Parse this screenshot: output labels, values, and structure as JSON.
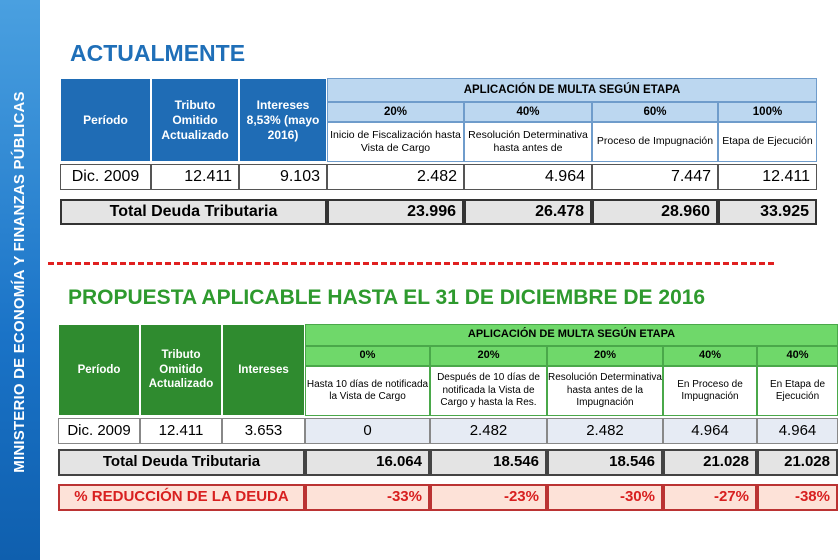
{
  "sidebar": {
    "text": "MINISTERIO DE ECONOMÍA Y FINANZAS PÚBLICAS"
  },
  "section1": {
    "heading": "ACTUALMENTE",
    "header": {
      "periodo": "Período",
      "tributo": "Tributo Omitido Actualizado",
      "intereses": "Intereses 8,53% (mayo 2016)",
      "aplicacion": "APLICACIÓN DE MULTA SEGÚN ETAPA"
    },
    "stages": [
      {
        "pct": "20%",
        "desc": "Inicio de Fiscalización hasta Vista de Cargo"
      },
      {
        "pct": "40%",
        "desc": "Resolución Determinativa hasta antes de"
      },
      {
        "pct": "60%",
        "desc": "Proceso de Impugnación"
      },
      {
        "pct": "100%",
        "desc": "Etapa de Ejecución"
      }
    ],
    "row": {
      "periodo": "Dic. 2009",
      "tributo": "12.411",
      "intereses": "9.103",
      "values": [
        "2.482",
        "4.964",
        "7.447",
        "12.411"
      ]
    },
    "total": {
      "label": "Total Deuda Tributaria",
      "values": [
        "23.996",
        "26.478",
        "28.960",
        "33.925"
      ]
    }
  },
  "section2": {
    "heading": "PROPUESTA APLICABLE HASTA EL 31 DE DICIEMBRE DE 2016",
    "header": {
      "periodo": "Período",
      "tributo": "Tributo Omitido Actualizado",
      "intereses": "Intereses",
      "aplicacion": "APLICACIÓN DE MULTA SEGÚN ETAPA"
    },
    "stages": [
      {
        "pct": "0%",
        "desc": "Hasta 10 días de notificada la Vista de Cargo"
      },
      {
        "pct": "20%",
        "desc": "Después de 10 días de notificada la Vista de Cargo y hasta la Res."
      },
      {
        "pct": "20%",
        "desc": "Resolución Determinativa hasta antes de la Impugnación"
      },
      {
        "pct": "40%",
        "desc": "En Proceso de Impugnación"
      },
      {
        "pct": "40%",
        "desc": "En Etapa de Ejecución"
      }
    ],
    "row": {
      "periodo": "Dic. 2009",
      "tributo": "12.411",
      "intereses": "3.653",
      "values": [
        "0",
        "2.482",
        "2.482",
        "4.964",
        "4.964"
      ]
    },
    "total": {
      "label": "Total Deuda Tributaria",
      "values": [
        "16.064",
        "18.546",
        "18.546",
        "21.028",
        "21.028"
      ]
    },
    "reduction": {
      "label": "% REDUCCIÓN DE LA DEUDA",
      "values": [
        "-33%",
        "-23%",
        "-30%",
        "-27%",
        "-38%"
      ]
    }
  },
  "colors": {
    "sidebar": "#1a73c7",
    "heading1": "#1f6fb8",
    "heading2": "#2e9a2e",
    "header_blue": "#1f6cb5",
    "header_green": "#2f8b2f",
    "reduction_text": "#d82020"
  }
}
